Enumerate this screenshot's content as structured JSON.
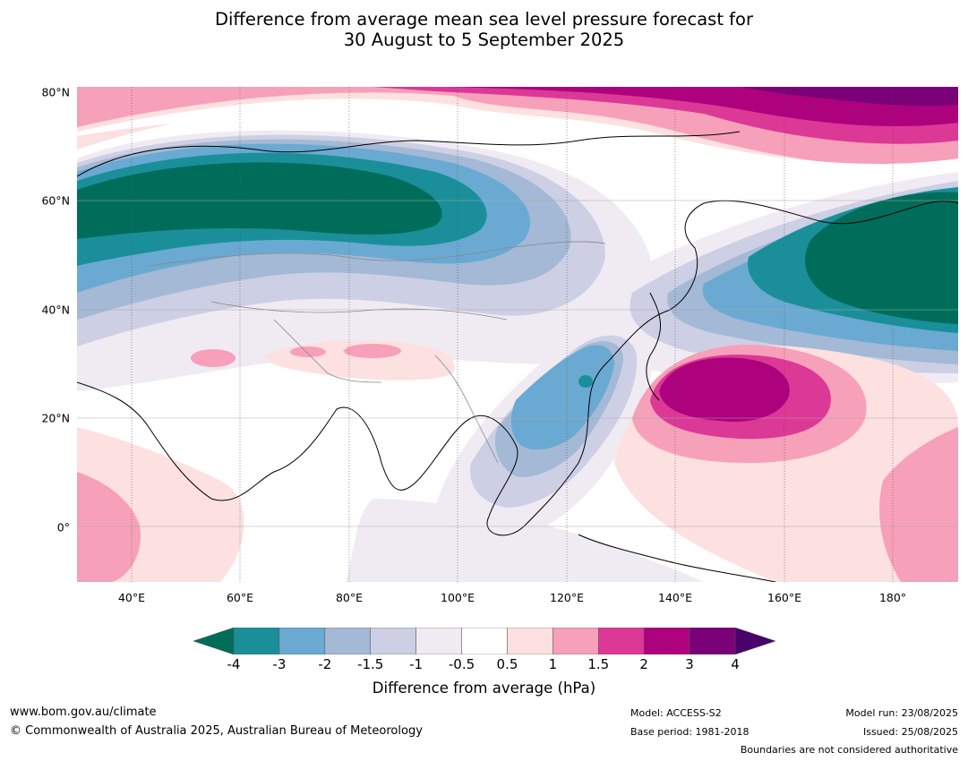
{
  "title": {
    "line1": "Difference from average mean sea level pressure forecast for",
    "line2": "30 August to 5 September 2025"
  },
  "map": {
    "latitude_labels": [
      "80°N",
      "60°N",
      "40°N",
      "20°N",
      "0°"
    ],
    "longitude_labels": [
      "40°E",
      "60°E",
      "80°E",
      "100°E",
      "120°E",
      "140°E",
      "160°E",
      "180°"
    ],
    "regions": [
      {
        "name": "siberia-low",
        "value_hpa": -4
      },
      {
        "name": "bering-sea-low",
        "value_hpa": -4
      },
      {
        "name": "arctic-high",
        "value_hpa": 3
      },
      {
        "name": "north-pacific-high",
        "value_hpa": 3
      },
      {
        "name": "east-china-sea-low",
        "value_hpa": -3
      }
    ]
  },
  "colorbar": {
    "tick_labels": [
      "-4",
      "-3",
      "-2",
      "-1.5",
      "-1",
      "-0.5",
      "0.5",
      "1",
      "1.5",
      "2",
      "3",
      "4"
    ],
    "colors": [
      "#1a8f9a",
      "#6aaad2",
      "#a3b9d6",
      "#cdcfe4",
      "#f0ebf3",
      "#ffffff",
      "#fde0e0",
      "#f7a0ba",
      "#dc3896",
      "#ae017e",
      "#7a0177"
    ],
    "under_color": "#006d5b",
    "over_color": "#49006a",
    "label": "Difference from average (hPa)"
  },
  "footer": {
    "website": "www.bom.gov.au/climate",
    "copyright": "© Commonwealth of Australia 2025, Australian Bureau of Meteorology",
    "model": "Model: ACCESS-S2",
    "base_period": "Base period: 1981-2018",
    "model_run": "Model run: 23/08/2025",
    "issued": "Issued: 25/08/2025",
    "disclaimer": "Boundaries are not considered authoritative"
  }
}
